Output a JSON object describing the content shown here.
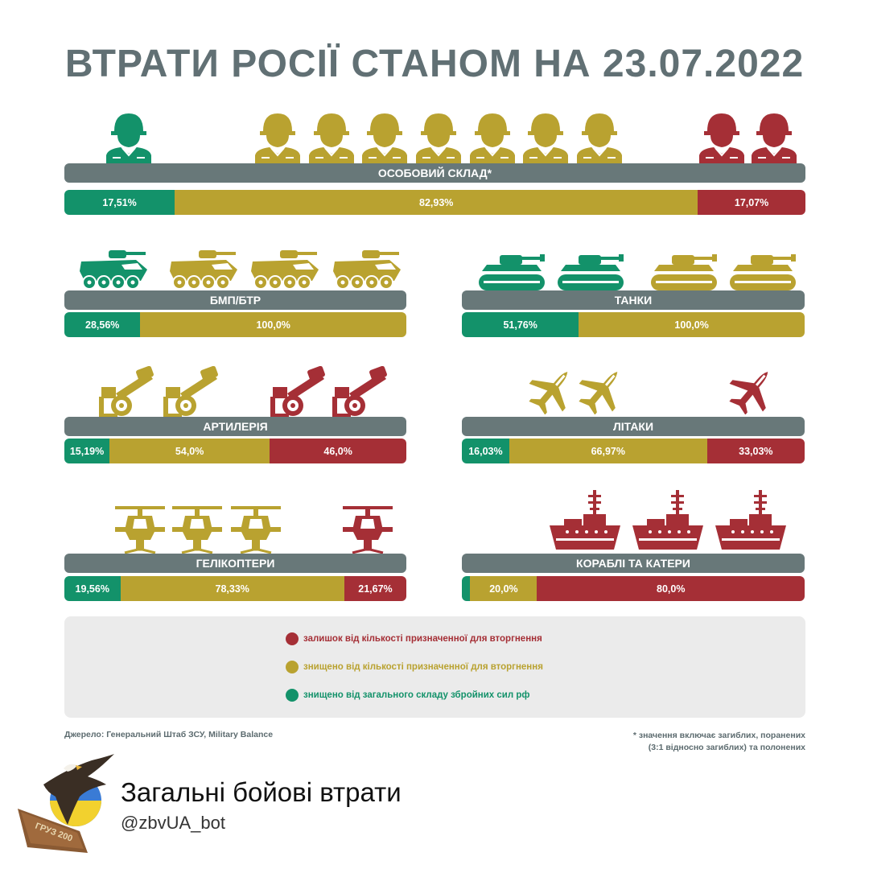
{
  "title": "ВТРАТИ РОСІЇ СТАНОМ НА 23.07.2022",
  "colors": {
    "green": "#13926a",
    "gold": "#b9a230",
    "red": "#a52f36",
    "label_bg": "#687879",
    "title": "#617074"
  },
  "chart_data": [
    {
      "type": "bar",
      "title": "ОСОБОВИЙ СКЛАД*",
      "icon": "soldier-icon",
      "icons": {
        "green": 1,
        "gold": 7,
        "red": 2
      },
      "segments": [
        {
          "name": "green",
          "value": 17.51,
          "label": "17,51%"
        },
        {
          "name": "gold",
          "value": 82.93,
          "label": "82,93%"
        },
        {
          "name": "red",
          "value": 17.07,
          "label": "17,07%"
        }
      ]
    },
    {
      "type": "bar",
      "title": "БМП/БТР",
      "icon": "apc-icon",
      "icons": {
        "green": 1,
        "gold": 3,
        "red": 0
      },
      "segments": [
        {
          "name": "green",
          "value": 28.56,
          "label": "28,56%"
        },
        {
          "name": "gold",
          "value": 100.0,
          "label": "100,0%"
        }
      ]
    },
    {
      "type": "bar",
      "title": "ТАНКИ",
      "icon": "tank-icon",
      "icons": {
        "green": 2,
        "gold": 2,
        "red": 0
      },
      "segments": [
        {
          "name": "green",
          "value": 51.76,
          "label": "51,76%"
        },
        {
          "name": "gold",
          "value": 100.0,
          "label": "100,0%"
        }
      ]
    },
    {
      "type": "bar",
      "title": "АРТИЛЕРІЯ",
      "icon": "artillery-icon",
      "icons": {
        "green": 0,
        "gold": 2,
        "red": 2
      },
      "segments": [
        {
          "name": "green",
          "value": 15.19,
          "label": "15,19%"
        },
        {
          "name": "gold",
          "value": 54.0,
          "label": "54,0%"
        },
        {
          "name": "red",
          "value": 46.0,
          "label": "46,0%"
        }
      ]
    },
    {
      "type": "bar",
      "title": "ЛІТАКИ",
      "icon": "jet-icon",
      "icons": {
        "green": 0,
        "gold": 2,
        "red": 1
      },
      "segments": [
        {
          "name": "green",
          "value": 16.03,
          "label": "16,03%"
        },
        {
          "name": "gold",
          "value": 66.97,
          "label": "66,97%"
        },
        {
          "name": "red",
          "value": 33.03,
          "label": "33,03%"
        }
      ]
    },
    {
      "type": "bar",
      "title": "ГЕЛІКОПТЕРИ",
      "icon": "helicopter-icon",
      "icons": {
        "green": 0,
        "gold": 3,
        "red": 1
      },
      "segments": [
        {
          "name": "green",
          "value": 19.56,
          "label": "19,56%"
        },
        {
          "name": "gold",
          "value": 78.33,
          "label": "78,33%"
        },
        {
          "name": "red",
          "value": 21.67,
          "label": "21,67%"
        }
      ]
    },
    {
      "type": "bar",
      "title": "КОРАБЛІ ТА КАТЕРИ",
      "icon": "ship-icon",
      "icons": {
        "green": 0,
        "gold": 0,
        "red": 3
      },
      "segments": [
        {
          "name": "green",
          "value": 2.5,
          "label": ""
        },
        {
          "name": "gold",
          "value": 20.0,
          "label": "20,0%"
        },
        {
          "name": "red",
          "value": 80.0,
          "label": "80,0%"
        }
      ]
    }
  ],
  "legend": [
    {
      "color": "#a52f36",
      "text": "залишок від кількості призначенної для вторгнення"
    },
    {
      "color": "#b9a230",
      "text": "знищено від кількості призначенної для вторгнення"
    },
    {
      "color": "#13926a",
      "text": "знищено від загального складу збройних сил рф"
    }
  ],
  "source": "Джерело: Генеральний Штаб ЗСУ, Military Balance",
  "footnote_line1": "* значення включає загиблих, поранених",
  "footnote_line2": "(3:1 відносно загиблих) та полонених",
  "brand": {
    "name": "Загальні бойові втрати",
    "handle": "@zbvUA_bot",
    "coffin_text": "ГРУЗ 200"
  }
}
